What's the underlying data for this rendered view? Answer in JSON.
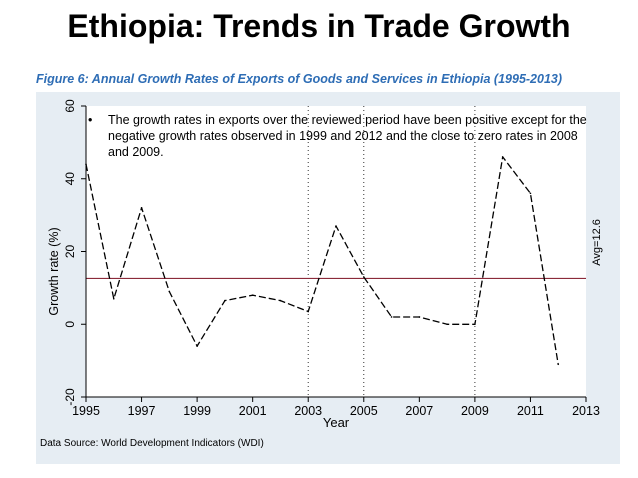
{
  "slide": {
    "title": "Ethiopia: Trends in Trade Growth",
    "caption": "Figure 6: Annual Growth Rates of Exports of Goods and Services in Ethiopia (1995-2013)",
    "bullet": "The growth rates in exports over the reviewed period have been positive except for the negative growth rates observed in 1999 and 2012 and the close to zero rates in 2008 and 2009.",
    "source": "Data Source: World Development Indicators (WDI)"
  },
  "chart_data": {
    "type": "line",
    "title": "",
    "xlabel": "Year",
    "ylabel": "Growth rate (%)",
    "xlim": [
      1995,
      2013
    ],
    "ylim": [
      -20,
      60
    ],
    "x_ticks": [
      1995,
      1997,
      1999,
      2001,
      2003,
      2005,
      2007,
      2009,
      2011,
      2013
    ],
    "y_ticks": [
      -20,
      0,
      20,
      40,
      60
    ],
    "x": [
      1995,
      1996,
      1997,
      1998,
      1999,
      2000,
      2001,
      2002,
      2003,
      2004,
      2005,
      2006,
      2007,
      2008,
      2009,
      2010,
      2011,
      2012
    ],
    "series": [
      {
        "values": [
          44,
          7,
          32,
          9,
          -6,
          6.5,
          8,
          6.5,
          3.5,
          27,
          13,
          2,
          2,
          0,
          0,
          46,
          36,
          -11
        ]
      }
    ],
    "reference_line": {
      "value": 12.6,
      "label": "Avg=12.6",
      "color": "#8b2a3a"
    },
    "vertical_markers": [
      2003,
      2005,
      2009
    ],
    "grid": false,
    "colors": {
      "line": "#000000",
      "plot_bg": "#ffffff",
      "outer_bg": "#e6edf3",
      "caption": "#2e6db5"
    }
  }
}
